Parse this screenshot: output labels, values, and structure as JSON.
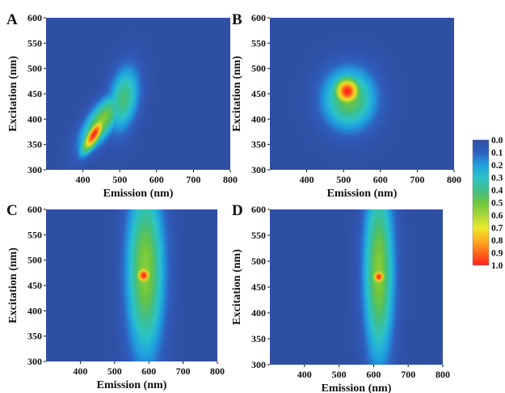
{
  "chart_data": [
    {
      "panel": "A",
      "type": "heatmap",
      "xlabel": "Emission (nm)",
      "ylabel": "Excitation (nm)",
      "xlim": [
        300,
        800
      ],
      "ylim": [
        300,
        600
      ],
      "xticks": [
        "400",
        "500",
        "600",
        "700",
        "800"
      ],
      "yticks": [
        "300",
        "350",
        "400",
        "450",
        "500",
        "550",
        "600"
      ],
      "peaks": [
        {
          "em": 430,
          "ex": 370,
          "intensity": 1.0,
          "sigma_em": 22,
          "sigma_ex": 24,
          "corr": 0.75
        },
        {
          "em": 450,
          "ex": 395,
          "intensity": 0.55,
          "sigma_em": 40,
          "sigma_ex": 38,
          "corr": 0.7
        },
        {
          "em": 510,
          "ex": 440,
          "intensity": 0.42,
          "sigma_em": 30,
          "sigma_ex": 45,
          "corr": 0.3
        }
      ]
    },
    {
      "panel": "B",
      "type": "heatmap",
      "xlabel": "Emission (nm)",
      "ylabel": "Excitation (nm)",
      "xlim": [
        300,
        800
      ],
      "ylim": [
        300,
        600
      ],
      "xticks": [
        "400",
        "500",
        "600",
        "700",
        "800"
      ],
      "yticks": [
        "300",
        "350",
        "400",
        "450",
        "500",
        "550",
        "600"
      ],
      "peaks": [
        {
          "em": 510,
          "ex": 455,
          "intensity": 1.0,
          "sigma_em": 26,
          "sigma_ex": 20,
          "corr": 0.0
        },
        {
          "em": 515,
          "ex": 440,
          "intensity": 0.5,
          "sigma_em": 50,
          "sigma_ex": 42,
          "corr": 0.0
        }
      ]
    },
    {
      "panel": "C",
      "type": "heatmap",
      "xlabel": "Emission (nm)",
      "ylabel": "Excitation (nm)",
      "xlim": [
        300,
        800
      ],
      "ylim": [
        300,
        600
      ],
      "xticks": [
        "400",
        "500",
        "600",
        "700",
        "800"
      ],
      "yticks": [
        "300",
        "350",
        "400",
        "450",
        "500",
        "550",
        "600"
      ],
      "peaks": [
        {
          "em": 585,
          "ex": 470,
          "intensity": 1.0,
          "sigma_em": 16,
          "sigma_ex": 12,
          "corr": 0.0
        },
        {
          "em": 590,
          "ex": 480,
          "intensity": 0.55,
          "sigma_em": 38,
          "sigma_ex": 120,
          "corr": 0.0
        }
      ]
    },
    {
      "panel": "D",
      "type": "heatmap",
      "xlabel": "Emission (nm)",
      "ylabel": "Excitation (nm)",
      "xlim": [
        300,
        800
      ],
      "ylim": [
        300,
        600
      ],
      "xticks": [
        "400",
        "500",
        "600",
        "700",
        "800"
      ],
      "yticks": [
        "300",
        "350",
        "400",
        "450",
        "500",
        "550",
        "600"
      ],
      "peaks": [
        {
          "em": 615,
          "ex": 470,
          "intensity": 1.0,
          "sigma_em": 14,
          "sigma_ex": 10,
          "corr": 0.0
        },
        {
          "em": 615,
          "ex": 480,
          "intensity": 0.55,
          "sigma_em": 30,
          "sigma_ex": 120,
          "corr": 0.0
        }
      ]
    }
  ],
  "colorbar": {
    "ticks": [
      "0.0",
      "0.1",
      "0.2",
      "0.3",
      "0.4",
      "0.5",
      "0.6",
      "0.7",
      "0.8",
      "0.9",
      "1.0"
    ],
    "stops": [
      {
        "v": 0.0,
        "color": "#2f4fa3"
      },
      {
        "v": 0.1,
        "color": "#2f5fc0"
      },
      {
        "v": 0.2,
        "color": "#1f9fe0"
      },
      {
        "v": 0.3,
        "color": "#2cc4c8"
      },
      {
        "v": 0.4,
        "color": "#3fbf8a"
      },
      {
        "v": 0.5,
        "color": "#6cc540"
      },
      {
        "v": 0.6,
        "color": "#a8d63a"
      },
      {
        "v": 0.7,
        "color": "#eaea2a"
      },
      {
        "v": 0.8,
        "color": "#ffb020"
      },
      {
        "v": 0.9,
        "color": "#ff6a1a"
      },
      {
        "v": 1.0,
        "color": "#ff1e1e"
      }
    ]
  }
}
